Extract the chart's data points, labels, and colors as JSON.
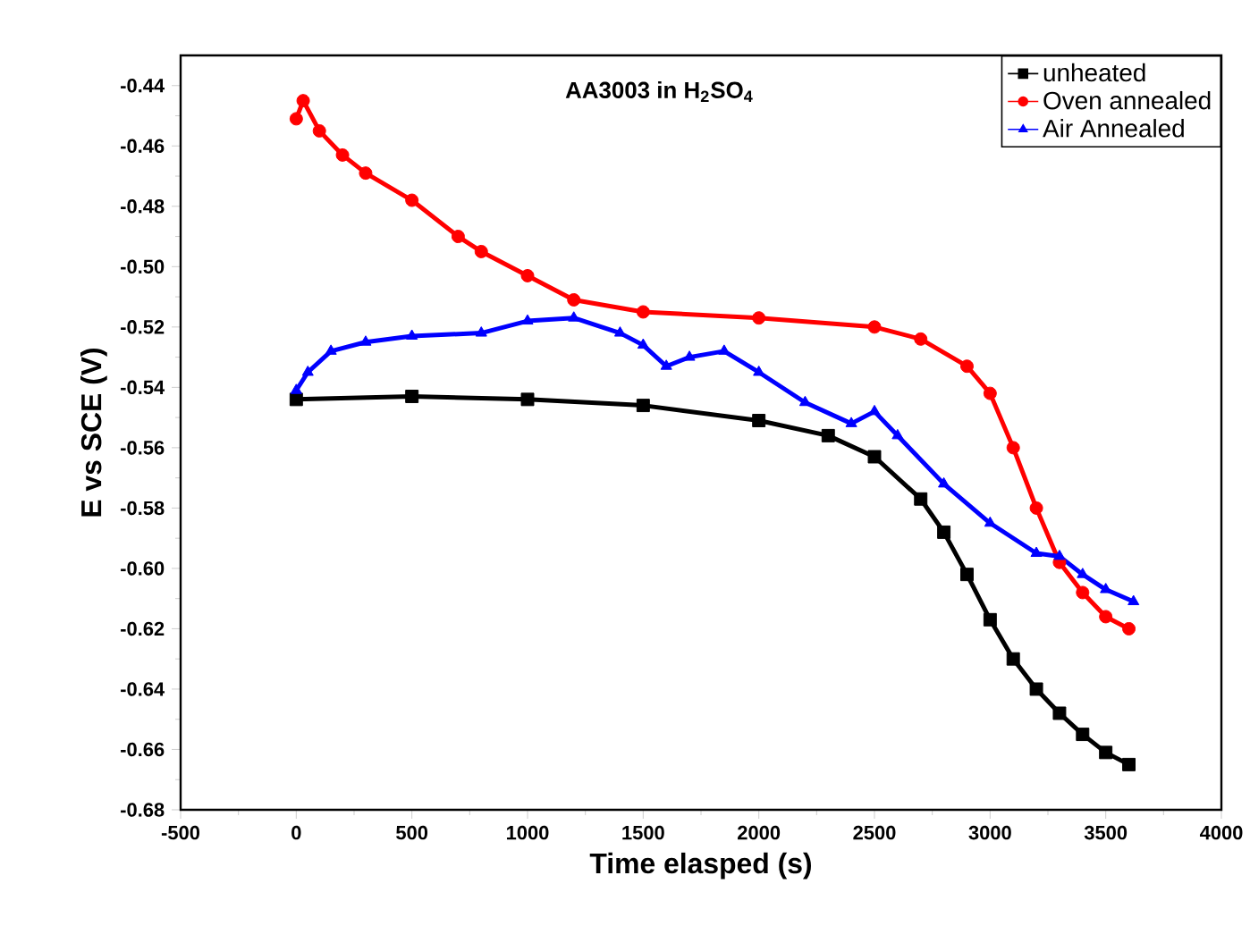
{
  "chart_data": {
    "type": "line",
    "title": "AA3003 in H$_{2}$SO$_{4}$",
    "xlabel": "Time elasped (s)",
    "ylabel": "E vs SCE (V)",
    "xlim": [
      -500,
      4000
    ],
    "xticks": [
      -500,
      0,
      500,
      1000,
      1500,
      2000,
      2500,
      3000,
      3500,
      4000
    ],
    "ylim": [
      -0.68,
      -0.43
    ],
    "yticks": [
      -0.68,
      -0.66,
      -0.64,
      -0.62,
      {
        "value": -0.6,
        "label": "-0.60"
      },
      -0.58,
      -0.56,
      -0.54,
      -0.52,
      {
        "value": -0.5,
        "label": "-0.50"
      },
      -0.48,
      -0.46,
      -0.44
    ],
    "legend": "top right",
    "grid": false,
    "series": [
      {
        "name": "unheated",
        "color": "#000000",
        "marker": "square",
        "x": [
          0,
          500,
          1000,
          1500,
          2000,
          2300,
          2500,
          2700,
          2800,
          2900,
          3000,
          3100,
          3200,
          3300,
          3400,
          3500,
          3600
        ],
        "values": [
          -0.544,
          -0.543,
          -0.544,
          -0.546,
          -0.551,
          -0.556,
          -0.563,
          -0.577,
          -0.588,
          -0.602,
          -0.617,
          -0.63,
          -0.64,
          -0.648,
          -0.655,
          -0.661,
          -0.665
        ]
      },
      {
        "name": "Oven annealed",
        "color": "#ff0000",
        "marker": "circle",
        "x": [
          0,
          30,
          100,
          200,
          300,
          500,
          700,
          800,
          1000,
          1200,
          1500,
          2000,
          2500,
          2700,
          2900,
          3000,
          3100,
          3200,
          3300,
          3400,
          3500,
          3600
        ],
        "values": [
          -0.451,
          -0.445,
          -0.455,
          -0.463,
          -0.469,
          -0.478,
          -0.49,
          -0.495,
          -0.503,
          -0.511,
          -0.515,
          -0.517,
          -0.52,
          -0.524,
          -0.533,
          -0.542,
          -0.56,
          -0.58,
          -0.598,
          -0.608,
          -0.616,
          -0.62
        ]
      },
      {
        "name": "Air Annealed",
        "color": "#0000ff",
        "marker": "triangle",
        "x": [
          0,
          50,
          150,
          300,
          500,
          800,
          1000,
          1200,
          1400,
          1500,
          1600,
          1700,
          1850,
          2000,
          2200,
          2400,
          2500,
          2600,
          2800,
          3000,
          3200,
          3300,
          3400,
          3500,
          3620
        ],
        "values": [
          -0.541,
          -0.535,
          -0.528,
          -0.525,
          -0.523,
          -0.522,
          -0.518,
          -0.517,
          -0.522,
          -0.526,
          -0.533,
          -0.53,
          -0.528,
          -0.535,
          -0.545,
          -0.552,
          -0.548,
          -0.556,
          -0.572,
          -0.585,
          -0.595,
          -0.596,
          -0.602,
          -0.607,
          -0.611
        ]
      }
    ]
  }
}
